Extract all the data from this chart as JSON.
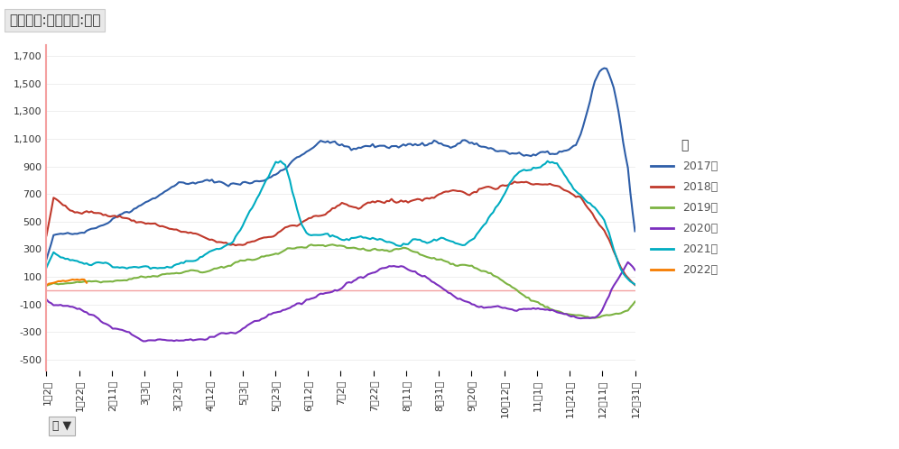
{
  "title": "平均值项:平电利润:上海",
  "ylabel": "",
  "xlabel": "",
  "background_color": "#ffffff",
  "plot_bg_color": "#ffffff",
  "title_fontsize": 11,
  "legend_title": "年",
  "yticks": [
    -500,
    -300,
    -100,
    100,
    300,
    500,
    700,
    900,
    1100,
    1300,
    1500,
    1700
  ],
  "ylim": [
    -580,
    1780
  ],
  "xtick_labels": [
    "1月2日",
    "1月22日",
    "2月11日",
    "3月3日",
    "3月23日",
    "4月12日",
    "5月3日",
    "5月23日",
    "6月12日",
    "7月2日",
    "7月22日",
    "8月11日",
    "8月31日",
    "9月20日",
    "10月12日",
    "11月1日",
    "11月21日",
    "12月11日",
    "12月31日"
  ],
  "series": {
    "2017年": {
      "color": "#2E5EA8",
      "linewidth": 1.5
    },
    "2018年": {
      "color": "#C0392B",
      "linewidth": 1.5
    },
    "2019年": {
      "color": "#7CB342",
      "linewidth": 1.5
    },
    "2020年": {
      "color": "#7B2FBE",
      "linewidth": 1.5
    },
    "2021年": {
      "color": "#00ACC1",
      "linewidth": 1.5
    },
    "2022年": {
      "color": "#F57C00",
      "linewidth": 1.5
    }
  },
  "zero_line_color": "#F4A0A0",
  "zero_line_linewidth": 1.0,
  "spine_color": "#F4A0A0"
}
